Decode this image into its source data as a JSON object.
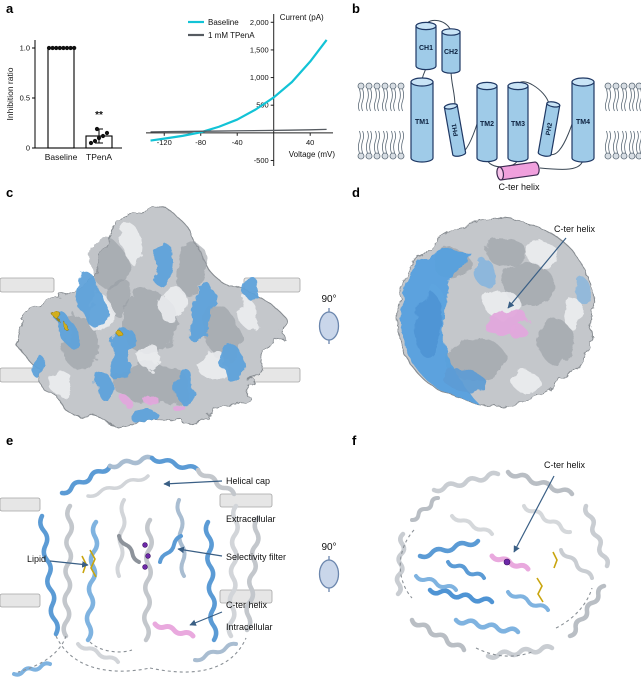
{
  "panels": {
    "a": "a",
    "b": "b",
    "c": "c",
    "d": "d",
    "e": "e",
    "f": "f"
  },
  "chart_data": [
    {
      "type": "bar",
      "ylabel": "Inhibition ratio",
      "categories": [
        "Baseline",
        "TPenA"
      ],
      "values": [
        1.0,
        0.12
      ],
      "scatter": [
        [
          1,
          1,
          1,
          1,
          1,
          1,
          1,
          1
        ],
        [
          0.05,
          0.07,
          0.1,
          0.12,
          0.15,
          0.19
        ]
      ],
      "error": [
        0,
        0.07
      ],
      "ylim": [
        0,
        1.1
      ],
      "yticks": [
        0,
        0.5,
        1.0
      ],
      "ytick_labels": [
        "0",
        "0.5",
        "1.0"
      ],
      "significance": "**"
    },
    {
      "type": "line",
      "xlabel": "Voltage (mV)",
      "ylabel": "Current (pA)",
      "xlim": [
        -140,
        65
      ],
      "ylim": [
        -600,
        2150
      ],
      "xticks": [
        -120,
        -80,
        -40,
        40
      ],
      "yticks": [
        -500,
        500,
        1000,
        1500,
        2000
      ],
      "ytick_labels": [
        "-500",
        "500",
        "1,000",
        "1,500",
        "2,000"
      ],
      "legend_position": "top-left",
      "grid": false,
      "series": [
        {
          "name": "Baseline",
          "color": "#12c3d6",
          "x": [
            -135,
            -120,
            -100,
            -80,
            -60,
            -40,
            -20,
            0,
            20,
            40,
            58
          ],
          "y": [
            -140,
            -105,
            -55,
            10,
            110,
            240,
            420,
            640,
            920,
            1290,
            1680
          ]
        },
        {
          "name": "1 mM TPenA",
          "color": "#565b61",
          "x": [
            -135,
            -110,
            -85,
            -60,
            -35,
            -10,
            15,
            40,
            58
          ],
          "y": [
            18,
            24,
            28,
            32,
            38,
            42,
            48,
            55,
            62
          ]
        }
      ]
    }
  ],
  "topology": {
    "helices": [
      "CH1",
      "CH2",
      "TM1",
      "PH1",
      "TM2",
      "TM3",
      "PH2",
      "TM4"
    ],
    "cter_helix_label": "C-ter helix"
  },
  "annotations": {
    "rotation_label": "90°",
    "d_cter": "C-ter helix",
    "helical_cap": "Helical cap",
    "extracellular": "Extracellular",
    "selectivity_filter": "Selectivity filter",
    "lipid": "Lipid",
    "e_cter": "C-ter helix",
    "intracellular": "Intracellular",
    "f_cter": "C-ter helix"
  },
  "colors": {
    "baseline_trace": "#12c3d6",
    "tpena_trace": "#565b61",
    "subunit_blue": "#5b9bd5",
    "subunit_gray": "#c3c7cc",
    "cter_pink": "#e9a9de",
    "ion_purple": "#6d28a8",
    "lipid_yellow": "#d2ae1c"
  }
}
